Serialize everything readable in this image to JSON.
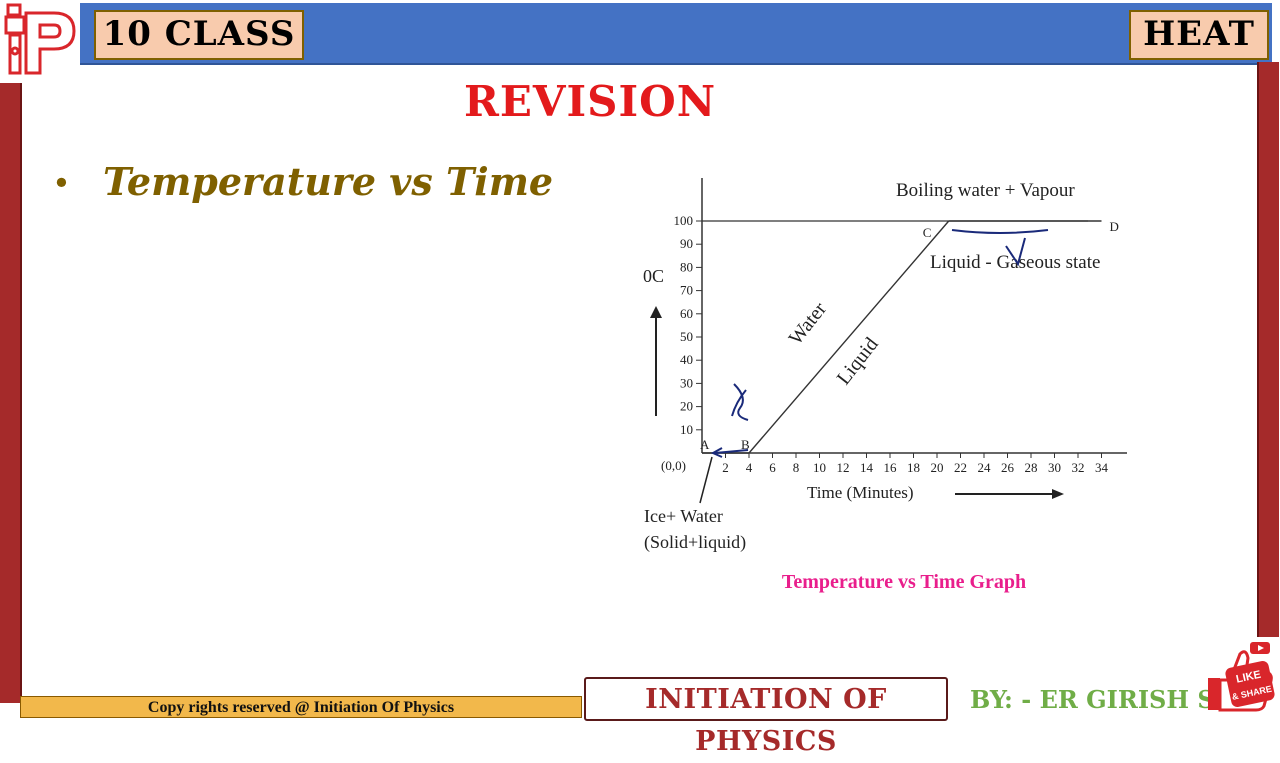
{
  "header": {
    "class_label": "10 CLASS",
    "subject_label": "HEAT"
  },
  "slide": {
    "title": "REVISION",
    "bullet": "Temperature vs Time"
  },
  "chart_data": {
    "type": "line",
    "title": "Temperature vs Time Graph",
    "xlabel": "Time (Minutes)",
    "ylabel": "0C",
    "x_ticks": [
      "2",
      "4",
      "6",
      "8",
      "10",
      "12",
      "14",
      "16",
      "18",
      "20",
      "22",
      "24",
      "26",
      "28",
      "30",
      "32",
      "34"
    ],
    "y_ticks": [
      "10",
      "20",
      "30",
      "40",
      "50",
      "60",
      "70",
      "80",
      "90",
      "100"
    ],
    "origin_label": "(0,0)",
    "xlim": [
      0,
      35
    ],
    "ylim": [
      0,
      105
    ],
    "series": [
      {
        "values": [
          {
            "x": 0,
            "y": 0
          },
          {
            "x": 4,
            "y": 0
          },
          {
            "x": 21,
            "y": 100
          },
          {
            "x": 34,
            "y": 100
          }
        ]
      }
    ],
    "points": [
      {
        "label": "A",
        "x": 0,
        "y": 0
      },
      {
        "label": "B",
        "x": 4,
        "y": 0
      },
      {
        "label": "C",
        "x": 21,
        "y": 100
      },
      {
        "label": "D",
        "x": 34,
        "y": 100
      }
    ],
    "annotations": {
      "boiling": "Boiling water + Vapour",
      "liquid_gaseous": "Liquid - Gaseous state",
      "water": "Water",
      "liquid": "Liquid",
      "ice_water": "Ice+ Water",
      "solid_liquid": "(Solid+liquid)"
    },
    "grid": false
  },
  "footer": {
    "copyright": "Copy rights reserved @ Initiation Of Physics",
    "brand": "INITIATION OF PHYSICS",
    "author": "BY: - ER GIRISH SIR"
  },
  "like_share": {
    "like": "LIKE",
    "share": "& SHARE"
  },
  "colors": {
    "header_bar": "#4472c4",
    "badge": "#f8cbad",
    "side_strip": "#a52a2a",
    "title": "#e31a1c",
    "bullet": "#7f6000",
    "chart_title": "#e91e8c",
    "ink": "#1a2a7a",
    "author": "#70ad47"
  }
}
